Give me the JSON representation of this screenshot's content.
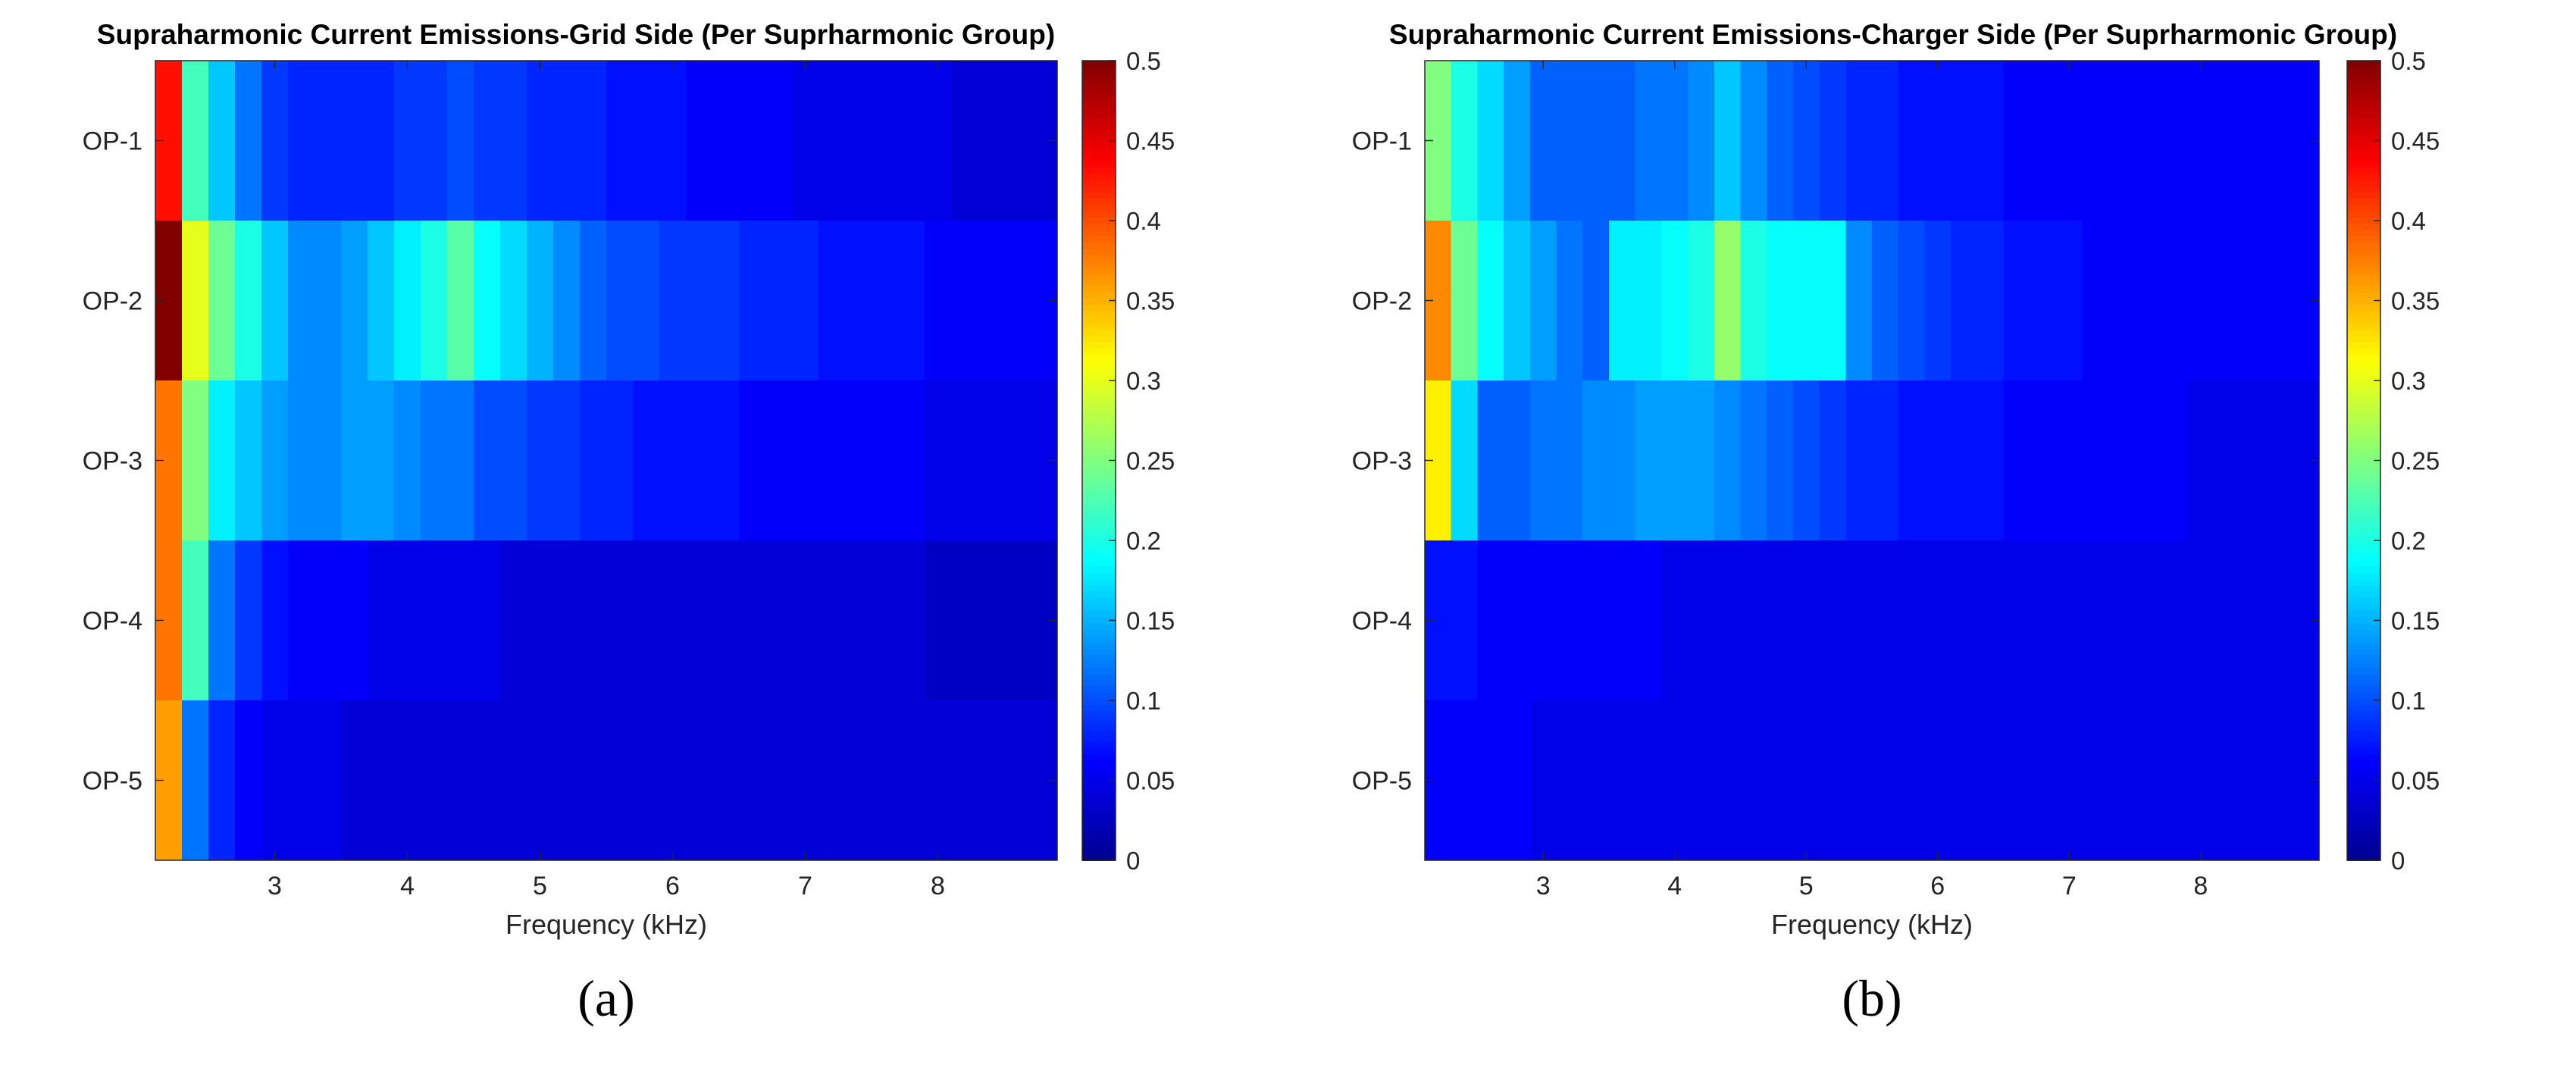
{
  "colormap": [
    "#00008F",
    "#0000FF",
    "#00FFFF",
    "#FFFF00",
    "#FF0000",
    "#800000"
  ],
  "chart_data": [
    {
      "type": "heatmap",
      "panel_label": "(a)",
      "title": "Supraharmonic Current Emissions-Grid Side (Per Suprharmonic Group)",
      "xlabel": "Frequency (kHz)",
      "ylabel": "",
      "xlim": [
        2.1,
        8.9
      ],
      "xticks": [
        3,
        4,
        5,
        6,
        7,
        8
      ],
      "bin_start_khz": 2.1,
      "bin_width_khz": 0.2,
      "y_categories": [
        "OP-1",
        "OP-2",
        "OP-3",
        "OP-4",
        "OP-5"
      ],
      "clim": [
        0,
        0.5
      ],
      "colorbar_ticks": [
        0,
        0.05,
        0.1,
        0.15,
        0.2,
        0.25,
        0.3,
        0.35,
        0.4,
        0.45,
        0.5
      ],
      "values": [
        [
          0.43,
          0.22,
          0.16,
          0.12,
          0.09,
          0.08,
          0.08,
          0.08,
          0.08,
          0.09,
          0.09,
          0.1,
          0.09,
          0.09,
          0.08,
          0.08,
          0.08,
          0.07,
          0.07,
          0.07,
          0.06,
          0.06,
          0.06,
          0.06,
          0.05,
          0.05,
          0.05,
          0.05,
          0.05,
          0.05,
          0.04,
          0.04,
          0.04,
          0.04
        ],
        [
          0.5,
          0.3,
          0.24,
          0.2,
          0.16,
          0.13,
          0.13,
          0.14,
          0.16,
          0.18,
          0.2,
          0.23,
          0.19,
          0.17,
          0.15,
          0.13,
          0.11,
          0.1,
          0.1,
          0.09,
          0.09,
          0.09,
          0.08,
          0.08,
          0.08,
          0.07,
          0.07,
          0.07,
          0.07,
          0.06,
          0.06,
          0.06,
          0.06,
          0.06
        ],
        [
          0.38,
          0.25,
          0.18,
          0.16,
          0.14,
          0.13,
          0.13,
          0.14,
          0.14,
          0.13,
          0.12,
          0.12,
          0.1,
          0.1,
          0.09,
          0.09,
          0.08,
          0.08,
          0.07,
          0.07,
          0.07,
          0.07,
          0.06,
          0.06,
          0.06,
          0.06,
          0.06,
          0.06,
          0.06,
          0.05,
          0.05,
          0.05,
          0.05,
          0.05
        ],
        [
          0.38,
          0.22,
          0.12,
          0.09,
          0.07,
          0.06,
          0.06,
          0.06,
          0.05,
          0.05,
          0.05,
          0.05,
          0.05,
          0.04,
          0.04,
          0.04,
          0.04,
          0.04,
          0.04,
          0.04,
          0.04,
          0.04,
          0.04,
          0.04,
          0.04,
          0.04,
          0.04,
          0.04,
          0.04,
          0.03,
          0.03,
          0.03,
          0.03,
          0.03
        ],
        [
          0.36,
          0.12,
          0.08,
          0.06,
          0.05,
          0.05,
          0.05,
          0.04,
          0.04,
          0.04,
          0.04,
          0.04,
          0.04,
          0.04,
          0.04,
          0.04,
          0.04,
          0.04,
          0.04,
          0.04,
          0.04,
          0.04,
          0.04,
          0.04,
          0.04,
          0.04,
          0.04,
          0.04,
          0.04,
          0.04,
          0.04,
          0.04,
          0.04,
          0.04
        ]
      ]
    },
    {
      "type": "heatmap",
      "panel_label": "(b)",
      "title": "Supraharmonic Current Emissions-Charger Side (Per Suprharmonic Group)",
      "xlabel": "Frequency (kHz)",
      "ylabel": "",
      "xlim": [
        2.1,
        8.9
      ],
      "xticks": [
        3,
        4,
        5,
        6,
        7,
        8
      ],
      "bin_start_khz": 2.1,
      "bin_width_khz": 0.2,
      "y_categories": [
        "OP-1",
        "OP-2",
        "OP-3",
        "OP-4",
        "OP-5"
      ],
      "clim": [
        0,
        0.5
      ],
      "colorbar_ticks": [
        0,
        0.05,
        0.1,
        0.15,
        0.2,
        0.25,
        0.3,
        0.35,
        0.4,
        0.45,
        0.5
      ],
      "values": [
        [
          0.25,
          0.2,
          0.17,
          0.14,
          0.11,
          0.11,
          0.11,
          0.11,
          0.12,
          0.12,
          0.13,
          0.16,
          0.13,
          0.11,
          0.1,
          0.09,
          0.08,
          0.08,
          0.07,
          0.07,
          0.07,
          0.07,
          0.06,
          0.06,
          0.06,
          0.06,
          0.06,
          0.06,
          0.06,
          0.06,
          0.06,
          0.06,
          0.06,
          0.06
        ],
        [
          0.37,
          0.24,
          0.19,
          0.16,
          0.14,
          0.12,
          0.11,
          0.18,
          0.18,
          0.19,
          0.2,
          0.26,
          0.2,
          0.19,
          0.19,
          0.19,
          0.13,
          0.11,
          0.1,
          0.09,
          0.08,
          0.08,
          0.07,
          0.07,
          0.07,
          0.06,
          0.06,
          0.06,
          0.06,
          0.06,
          0.06,
          0.06,
          0.06,
          0.06
        ],
        [
          0.32,
          0.17,
          0.11,
          0.11,
          0.12,
          0.12,
          0.13,
          0.13,
          0.14,
          0.14,
          0.14,
          0.13,
          0.12,
          0.11,
          0.1,
          0.09,
          0.08,
          0.08,
          0.07,
          0.07,
          0.07,
          0.07,
          0.06,
          0.06,
          0.06,
          0.06,
          0.06,
          0.06,
          0.06,
          0.05,
          0.05,
          0.05,
          0.05,
          0.05
        ],
        [
          0.07,
          0.07,
          0.06,
          0.06,
          0.06,
          0.06,
          0.06,
          0.06,
          0.06,
          0.05,
          0.05,
          0.05,
          0.05,
          0.05,
          0.05,
          0.05,
          0.05,
          0.05,
          0.05,
          0.05,
          0.05,
          0.05,
          0.05,
          0.05,
          0.05,
          0.05,
          0.05,
          0.05,
          0.05,
          0.05,
          0.05,
          0.05,
          0.05,
          0.05
        ],
        [
          0.06,
          0.06,
          0.06,
          0.06,
          0.05,
          0.05,
          0.05,
          0.05,
          0.05,
          0.05,
          0.05,
          0.05,
          0.05,
          0.05,
          0.05,
          0.05,
          0.05,
          0.05,
          0.05,
          0.05,
          0.05,
          0.05,
          0.05,
          0.05,
          0.05,
          0.05,
          0.05,
          0.05,
          0.05,
          0.05,
          0.05,
          0.05,
          0.05,
          0.05
        ]
      ]
    }
  ]
}
